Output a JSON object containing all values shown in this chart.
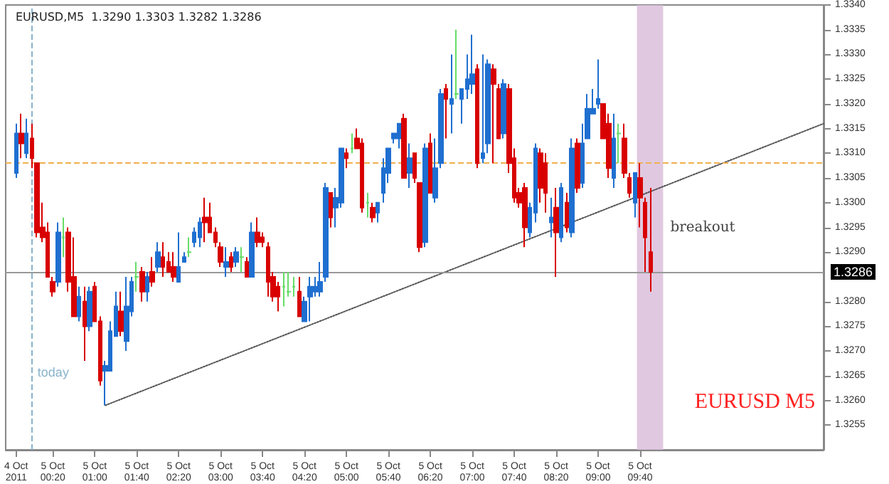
{
  "chart_data": {
    "type": "candlestick",
    "title": "EURUSD,M5  1.3290 1.3303 1.3282 1.3286",
    "x": [
      "2011-10-04T23:45",
      "2011-10-04T23:50",
      "2011-10-04T23:55",
      "2011-10-05T00:00",
      "2011-10-05T00:05",
      "2011-10-05T00:10",
      "2011-10-05T00:15",
      "2011-10-05T00:20",
      "2011-10-05T00:25",
      "2011-10-05T00:30",
      "2011-10-05T00:35",
      "2011-10-05T00:40",
      "2011-10-05T00:45",
      "2011-10-05T00:50",
      "2011-10-05T00:55",
      "2011-10-05T01:00",
      "2011-10-05T01:05",
      "2011-10-05T01:10",
      "2011-10-05T01:15",
      "2011-10-05T01:20",
      "2011-10-05T01:25",
      "2011-10-05T01:30",
      "2011-10-05T01:35",
      "2011-10-05T01:40",
      "2011-10-05T01:45",
      "2011-10-05T01:50",
      "2011-10-05T01:55",
      "2011-10-05T02:00",
      "2011-10-05T02:05",
      "2011-10-05T02:10",
      "2011-10-05T02:15",
      "2011-10-05T02:20",
      "2011-10-05T02:25",
      "2011-10-05T02:30",
      "2011-10-05T02:35",
      "2011-10-05T02:40",
      "2011-10-05T02:45",
      "2011-10-05T02:50",
      "2011-10-05T02:55",
      "2011-10-05T03:00",
      "2011-10-05T03:05",
      "2011-10-05T03:10",
      "2011-10-05T03:15",
      "2011-10-05T03:20",
      "2011-10-05T03:25",
      "2011-10-05T03:30",
      "2011-10-05T03:35",
      "2011-10-05T03:40",
      "2011-10-05T03:45",
      "2011-10-05T03:50",
      "2011-10-05T03:55",
      "2011-10-05T04:00",
      "2011-10-05T04:05",
      "2011-10-05T04:10",
      "2011-10-05T04:15",
      "2011-10-05T04:20",
      "2011-10-05T04:25",
      "2011-10-05T04:30",
      "2011-10-05T04:35",
      "2011-10-05T04:40",
      "2011-10-05T04:45",
      "2011-10-05T04:50",
      "2011-10-05T04:55",
      "2011-10-05T05:00",
      "2011-10-05T05:05",
      "2011-10-05T05:10",
      "2011-10-05T05:15",
      "2011-10-05T05:20",
      "2011-10-05T05:25",
      "2011-10-05T05:30",
      "2011-10-05T05:35",
      "2011-10-05T05:40",
      "2011-10-05T05:45",
      "2011-10-05T05:50",
      "2011-10-05T05:55",
      "2011-10-05T06:00",
      "2011-10-05T06:05",
      "2011-10-05T06:10",
      "2011-10-05T06:15",
      "2011-10-05T06:20",
      "2011-10-05T06:25",
      "2011-10-05T06:30",
      "2011-10-05T06:35",
      "2011-10-05T06:40",
      "2011-10-05T06:45",
      "2011-10-05T06:50",
      "2011-10-05T06:55",
      "2011-10-05T07:00",
      "2011-10-05T07:05",
      "2011-10-05T07:10",
      "2011-10-05T07:15",
      "2011-10-05T07:20",
      "2011-10-05T07:25",
      "2011-10-05T07:30",
      "2011-10-05T07:35",
      "2011-10-05T07:40",
      "2011-10-05T07:45",
      "2011-10-05T07:50",
      "2011-10-05T07:55",
      "2011-10-05T08:00",
      "2011-10-05T08:05",
      "2011-10-05T08:10",
      "2011-10-05T08:15",
      "2011-10-05T08:20",
      "2011-10-05T08:25",
      "2011-10-05T08:30",
      "2011-10-05T08:35",
      "2011-10-05T08:40",
      "2011-10-05T08:45",
      "2011-10-05T08:50",
      "2011-10-05T08:55",
      "2011-10-05T09:00",
      "2011-10-05T09:05",
      "2011-10-05T09:10",
      "2011-10-05T09:15",
      "2011-10-05T09:20",
      "2011-10-05T09:25",
      "2011-10-05T09:30",
      "2011-10-05T09:35",
      "2011-10-05T09:40",
      "2011-10-05T09:45",
      "2011-10-05T09:50"
    ],
    "ohlc": [
      [
        1.3306,
        1.3316,
        1.3305,
        1.3314
      ],
      [
        1.3314,
        1.3318,
        1.3309,
        1.3312
      ],
      [
        1.331,
        1.3317,
        1.3309,
        1.3314
      ],
      [
        1.3313,
        1.3316,
        1.3307,
        1.3309
      ],
      [
        1.3308,
        1.3308,
        1.3293,
        1.3294
      ],
      [
        1.3295,
        1.33,
        1.3292,
        1.3293
      ],
      [
        1.3294,
        1.3296,
        1.3285,
        1.3285
      ],
      [
        1.3284,
        1.3285,
        1.3281,
        1.3282
      ],
      [
        1.3284,
        1.3296,
        1.3283,
        1.3294
      ],
      [
        1.3293,
        1.3297,
        1.3289,
        1.3293
      ],
      [
        1.3294,
        1.3295,
        1.3282,
        1.3284
      ],
      [
        1.3285,
        1.3293,
        1.3277,
        1.3277
      ],
      [
        1.3277,
        1.3283,
        1.3276,
        1.3281
      ],
      [
        1.328,
        1.3283,
        1.3268,
        1.3275
      ],
      [
        1.3275,
        1.3283,
        1.3274,
        1.3282
      ],
      [
        1.3283,
        1.3284,
        1.3276,
        1.3276
      ],
      [
        1.3276,
        1.3277,
        1.3263,
        1.3264
      ],
      [
        1.3266,
        1.3268,
        1.3259,
        1.3267
      ],
      [
        1.3266,
        1.3276,
        1.3266,
        1.3274
      ],
      [
        1.3273,
        1.3282,
        1.3273,
        1.3279
      ],
      [
        1.3278,
        1.3282,
        1.3273,
        1.3274
      ],
      [
        1.3272,
        1.3285,
        1.327,
        1.3279
      ],
      [
        1.3278,
        1.3285,
        1.3277,
        1.3284
      ],
      [
        1.3285,
        1.3288,
        1.3282,
        1.3285
      ],
      [
        1.3286,
        1.3287,
        1.328,
        1.3282
      ],
      [
        1.3282,
        1.3286,
        1.328,
        1.3285
      ],
      [
        1.3286,
        1.3289,
        1.3283,
        1.3284
      ],
      [
        1.3287,
        1.3292,
        1.3286,
        1.329
      ],
      [
        1.3289,
        1.3292,
        1.3285,
        1.3287
      ],
      [
        1.3288,
        1.329,
        1.3286,
        1.3286
      ],
      [
        1.3287,
        1.329,
        1.3284,
        1.3285
      ],
      [
        1.3284,
        1.3294,
        1.3284,
        1.3287
      ],
      [
        1.3288,
        1.329,
        1.3288,
        1.3289
      ],
      [
        1.329,
        1.3293,
        1.3289,
        1.329
      ],
      [
        1.3292,
        1.3295,
        1.3291,
        1.3294
      ],
      [
        1.3293,
        1.3297,
        1.3291,
        1.3296
      ],
      [
        1.3297,
        1.3301,
        1.3292,
        1.3296
      ],
      [
        1.3297,
        1.33,
        1.3294,
        1.3294
      ],
      [
        1.3294,
        1.3295,
        1.3291,
        1.3292
      ],
      [
        1.3291,
        1.3292,
        1.3287,
        1.3288
      ],
      [
        1.3287,
        1.3291,
        1.3285,
        1.3288
      ],
      [
        1.3289,
        1.329,
        1.3286,
        1.3287
      ],
      [
        1.3288,
        1.3291,
        1.3287,
        1.329
      ],
      [
        1.3289,
        1.3291,
        1.3286,
        1.3289
      ],
      [
        1.3288,
        1.3289,
        1.3285,
        1.3285
      ],
      [
        1.3285,
        1.3296,
        1.3285,
        1.3294
      ],
      [
        1.3294,
        1.3297,
        1.3291,
        1.3292
      ],
      [
        1.3293,
        1.3294,
        1.3291,
        1.3292
      ],
      [
        1.3291,
        1.3292,
        1.3281,
        1.3284
      ],
      [
        1.3285,
        1.3286,
        1.328,
        1.3281
      ],
      [
        1.3283,
        1.3284,
        1.3278,
        1.3281
      ],
      [
        1.3283,
        1.3286,
        1.3279,
        1.3283
      ],
      [
        1.3282,
        1.3286,
        1.3281,
        1.3282
      ],
      [
        1.3283,
        1.3285,
        1.3281,
        1.3283
      ],
      [
        1.3282,
        1.3285,
        1.3277,
        1.3277
      ],
      [
        1.3276,
        1.3281,
        1.3276,
        1.328
      ],
      [
        1.3281,
        1.3285,
        1.3276,
        1.3283
      ],
      [
        1.3282,
        1.3285,
        1.3281,
        1.3283
      ],
      [
        1.3282,
        1.3288,
        1.3281,
        1.3284
      ],
      [
        1.3285,
        1.3304,
        1.3284,
        1.3303
      ],
      [
        1.3302,
        1.3302,
        1.3295,
        1.3297
      ],
      [
        1.3299,
        1.3303,
        1.3295,
        1.3301
      ],
      [
        1.33,
        1.3311,
        1.3299,
        1.3311
      ],
      [
        1.331,
        1.3311,
        1.3307,
        1.3309
      ],
      [
        1.3311,
        1.3314,
        1.331,
        1.3311
      ],
      [
        1.3313,
        1.3315,
        1.3311,
        1.3311
      ],
      [
        1.3312,
        1.3313,
        1.3298,
        1.3299
      ],
      [
        1.33,
        1.3302,
        1.3297,
        1.33
      ],
      [
        1.3299,
        1.33,
        1.3296,
        1.3297
      ],
      [
        1.3298,
        1.33,
        1.3296,
        1.33
      ],
      [
        1.3302,
        1.3309,
        1.33,
        1.3307
      ],
      [
        1.3306,
        1.3311,
        1.3304,
        1.3311
      ],
      [
        1.3313,
        1.3314,
        1.3312,
        1.3314
      ],
      [
        1.3313,
        1.3316,
        1.3311,
        1.3316
      ],
      [
        1.3317,
        1.3318,
        1.3305,
        1.3305
      ],
      [
        1.3306,
        1.3312,
        1.3303,
        1.3309
      ],
      [
        1.331,
        1.331,
        1.3304,
        1.3305
      ],
      [
        1.3304,
        1.3304,
        1.329,
        1.3291
      ],
      [
        1.3292,
        1.3312,
        1.3291,
        1.3311
      ],
      [
        1.3312,
        1.3314,
        1.3302,
        1.3302
      ],
      [
        1.3301,
        1.3313,
        1.33,
        1.3307
      ],
      [
        1.3308,
        1.3323,
        1.3307,
        1.3322
      ],
      [
        1.3323,
        1.3324,
        1.3313,
        1.3321
      ],
      [
        1.332,
        1.333,
        1.3314,
        1.3321
      ],
      [
        1.3322,
        1.3335,
        1.3321,
        1.3322
      ],
      [
        1.3321,
        1.3323,
        1.3316,
        1.3323
      ],
      [
        1.3323,
        1.333,
        1.3321,
        1.3325
      ],
      [
        1.3324,
        1.3334,
        1.3322,
        1.3326
      ],
      [
        1.3327,
        1.3328,
        1.3307,
        1.3308
      ],
      [
        1.3309,
        1.333,
        1.3308,
        1.331
      ],
      [
        1.3312,
        1.3329,
        1.331,
        1.3328
      ],
      [
        1.3327,
        1.3328,
        1.3308,
        1.3324
      ],
      [
        1.3323,
        1.3324,
        1.3313,
        1.3313
      ],
      [
        1.3314,
        1.3325,
        1.3313,
        1.3324
      ],
      [
        1.3323,
        1.3324,
        1.3306,
        1.3308
      ],
      [
        1.3309,
        1.3311,
        1.33,
        1.3301
      ],
      [
        1.3302,
        1.3303,
        1.3299,
        1.33
      ],
      [
        1.3303,
        1.3304,
        1.3291,
        1.3295
      ],
      [
        1.3294,
        1.33,
        1.3293,
        1.3299
      ],
      [
        1.3298,
        1.3312,
        1.3296,
        1.3311
      ],
      [
        1.331,
        1.3311,
        1.33,
        1.3303
      ],
      [
        1.3308,
        1.331,
        1.3298,
        1.3302
      ],
      [
        1.3296,
        1.3301,
        1.3293,
        1.3297
      ],
      [
        1.3299,
        1.3303,
        1.3285,
        1.3294
      ],
      [
        1.3293,
        1.3304,
        1.3292,
        1.3303
      ],
      [
        1.33,
        1.3302,
        1.3294,
        1.3295
      ],
      [
        1.3294,
        1.3313,
        1.3293,
        1.3311
      ],
      [
        1.3312,
        1.3313,
        1.3302,
        1.3303
      ],
      [
        1.3304,
        1.3316,
        1.3303,
        1.3312
      ],
      [
        1.3313,
        1.3322,
        1.3313,
        1.3319
      ],
      [
        1.3318,
        1.3323,
        1.3318,
        1.3319
      ],
      [
        1.332,
        1.3329,
        1.3319,
        1.3321
      ],
      [
        1.332,
        1.332,
        1.3313,
        1.3313
      ],
      [
        1.3316,
        1.3318,
        1.3305,
        1.3307
      ],
      [
        1.3305,
        1.3318,
        1.3303,
        1.3313
      ],
      [
        1.3314,
        1.3316,
        1.3308,
        1.3314
      ],
      [
        1.3313,
        1.3316,
        1.3305,
        1.3306
      ],
      [
        1.3305,
        1.3306,
        1.3301,
        1.3302
      ],
      [
        1.33,
        1.3306,
        1.3297,
        1.3306
      ],
      [
        1.3305,
        1.3308,
        1.3295,
        1.3301
      ],
      [
        1.33,
        1.3301,
        1.3286,
        1.3293
      ],
      [
        1.329,
        1.3303,
        1.3282,
        1.3286
      ]
    ],
    "colors": [
      "#1f6fd0",
      "#d80000",
      "#1f6fd0",
      "#d80000",
      "#d80000",
      "#d80000",
      "#d80000",
      "#d80000",
      "#1f6fd0",
      "#66dd66",
      "#d80000",
      "#d80000",
      "#1f6fd0",
      "#d80000",
      "#1f6fd0",
      "#d80000",
      "#d80000",
      "#1f6fd0",
      "#1f6fd0",
      "#1f6fd0",
      "#d80000",
      "#1f6fd0",
      "#1f6fd0",
      "#66dd66",
      "#d80000",
      "#1f6fd0",
      "#d80000",
      "#1f6fd0",
      "#d80000",
      "#d80000",
      "#d80000",
      "#1f6fd0",
      "#1f6fd0",
      "#66dd66",
      "#1f6fd0",
      "#1f6fd0",
      "#d80000",
      "#d80000",
      "#d80000",
      "#d80000",
      "#1f6fd0",
      "#d80000",
      "#1f6fd0",
      "#66dd66",
      "#d80000",
      "#1f6fd0",
      "#d80000",
      "#d80000",
      "#d80000",
      "#d80000",
      "#d80000",
      "#66dd66",
      "#66dd66",
      "#66dd66",
      "#d80000",
      "#1f6fd0",
      "#1f6fd0",
      "#1f6fd0",
      "#1f6fd0",
      "#1f6fd0",
      "#d80000",
      "#1f6fd0",
      "#1f6fd0",
      "#d80000",
      "#66dd66",
      "#d80000",
      "#d80000",
      "#66dd66",
      "#d80000",
      "#1f6fd0",
      "#1f6fd0",
      "#1f6fd0",
      "#1f6fd0",
      "#1f6fd0",
      "#d80000",
      "#1f6fd0",
      "#d80000",
      "#d80000",
      "#1f6fd0",
      "#d80000",
      "#1f6fd0",
      "#1f6fd0",
      "#d80000",
      "#1f6fd0",
      "#66dd66",
      "#1f6fd0",
      "#1f6fd0",
      "#1f6fd0",
      "#d80000",
      "#1f6fd0",
      "#1f6fd0",
      "#d80000",
      "#d80000",
      "#1f6fd0",
      "#d80000",
      "#d80000",
      "#d80000",
      "#d80000",
      "#1f6fd0",
      "#1f6fd0",
      "#d80000",
      "#d80000",
      "#1f6fd0",
      "#d80000",
      "#1f6fd0",
      "#d80000",
      "#1f6fd0",
      "#d80000",
      "#1f6fd0",
      "#1f6fd0",
      "#1f6fd0",
      "#1f6fd0",
      "#d80000",
      "#d80000",
      "#1f6fd0",
      "#66dd66",
      "#d80000",
      "#d80000",
      "#1f6fd0",
      "#d80000",
      "#d80000",
      "#d80000"
    ],
    "series": [
      {
        "type": "line",
        "x": [
          "2011-10-05T01:10",
          "2011-10-05T12:35"
        ],
        "values": [
          1.3259,
          1.3316
        ],
        "color": "#555555",
        "line_style": "dotted",
        "marker": "none"
      }
    ],
    "xlim": [
      "2011-10-04T23:35",
      "2011-10-05T12:35"
    ],
    "xticks": [
      {
        "value": "2011-10-04T23:45",
        "label": "4 Oct 2011"
      },
      {
        "value": "2011-10-05T00:20",
        "label": "5 Oct 00:20"
      },
      {
        "value": "2011-10-05T01:00",
        "label": "5 Oct 01:00"
      },
      {
        "value": "2011-10-05T01:40",
        "label": "5 Oct 01:40"
      },
      {
        "value": "2011-10-05T02:20",
        "label": "5 Oct 02:20"
      },
      {
        "value": "2011-10-05T03:00",
        "label": "5 Oct 03:00"
      },
      {
        "value": "2011-10-05T03:40",
        "label": "5 Oct 03:40"
      },
      {
        "value": "2011-10-05T04:20",
        "label": "5 Oct 04:20"
      },
      {
        "value": "2011-10-05T05:00",
        "label": "5 Oct 05:00"
      },
      {
        "value": "2011-10-05T05:40",
        "label": "5 Oct 05:40"
      },
      {
        "value": "2011-10-05T06:20",
        "label": "5 Oct 06:20"
      },
      {
        "value": "2011-10-05T07:00",
        "label": "5 Oct 07:00"
      },
      {
        "value": "2011-10-05T07:40",
        "label": "5 Oct 07:40"
      },
      {
        "value": "2011-10-05T08:20",
        "label": "5 Oct 08:20"
      },
      {
        "value": "2011-10-05T09:00",
        "label": "5 Oct 09:00"
      },
      {
        "value": "2011-10-05T09:40",
        "label": "5 Oct 09:40"
      }
    ],
    "ylim": [
      1.325,
      1.334
    ],
    "yticks": [
      1.3255,
      {
        "value": 1.326,
        "label": "1.3260"
      },
      1.3265,
      {
        "value": 1.327,
        "label": "1.3270"
      },
      1.3275,
      {
        "value": 1.328,
        "label": "1.3280"
      },
      {
        "value": 1.329,
        "label": "1.3290"
      },
      1.3295,
      {
        "value": 1.33,
        "label": "1.3300"
      },
      1.3305,
      {
        "value": 1.331,
        "label": "1.3310"
      },
      1.3315,
      {
        "value": 1.332,
        "label": "1.3320"
      },
      1.3325,
      {
        "value": 1.333,
        "label": "1.3330"
      },
      1.3335,
      {
        "value": 1.334,
        "label": "1.3340"
      }
    ],
    "ref_lines": [
      {
        "axis": "x",
        "value": "2011-10-05T00:00",
        "label": "today",
        "color": "#8ab4cc",
        "line_style": "dashed"
      },
      {
        "axis": "y",
        "value": 1.3308,
        "color": "#f0b050",
        "line_style": "dashed"
      },
      {
        "axis": "y",
        "value": 1.3286,
        "label": "1.3286",
        "color": "#999999",
        "line_style": "solid"
      }
    ],
    "bands": [
      {
        "axis": "x",
        "from": "2011-10-05T09:37",
        "to": "2011-10-05T10:02",
        "label": "breakout",
        "color": "#d8bcd8"
      }
    ],
    "annotations": [
      "EURUSD M5"
    ],
    "grid": false
  }
}
